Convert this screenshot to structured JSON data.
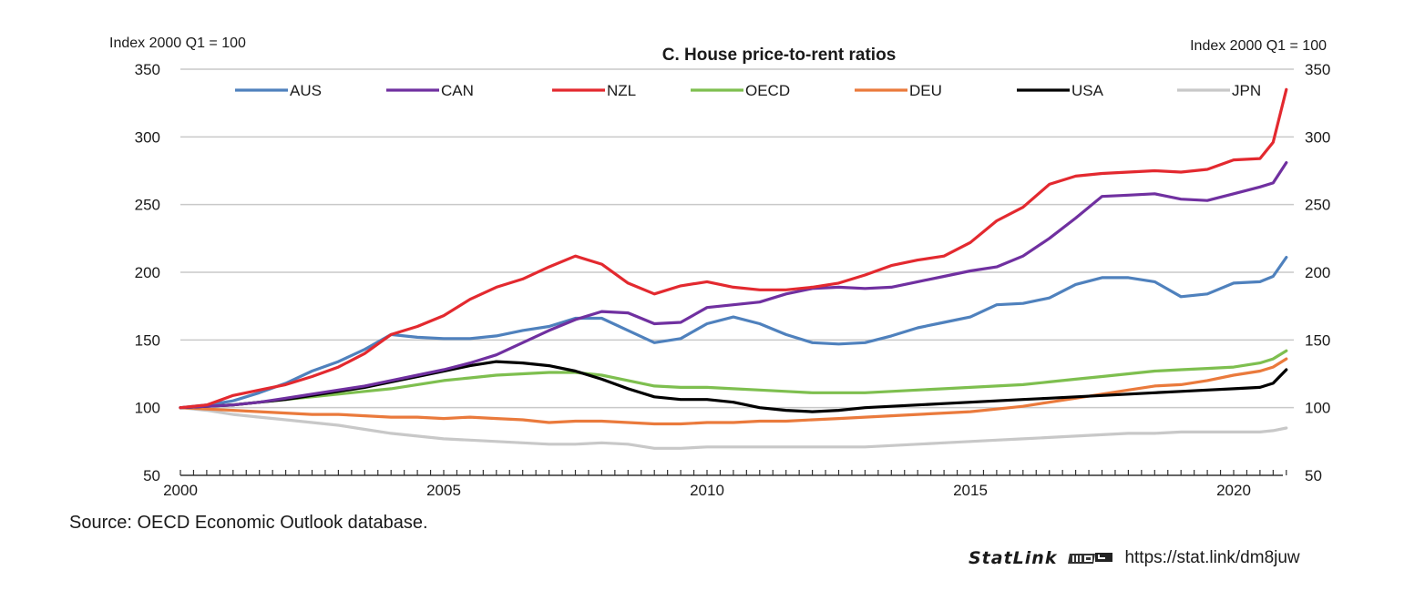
{
  "chart_data": {
    "type": "line",
    "title": "C. House price-to-rent ratios",
    "ylabel_left": "Index 2000 Q1 = 100",
    "ylabel_right": "Index 2000 Q1 = 100",
    "xlabel": "",
    "ylim": [
      50,
      350
    ],
    "yticks": [
      50,
      100,
      150,
      200,
      250,
      300,
      350
    ],
    "xlim": [
      2000,
      2021
    ],
    "xticks": [
      2000,
      2005,
      2010,
      2015,
      2020
    ],
    "grid": true,
    "legend_position": "top",
    "x": [
      2000.0,
      2000.5,
      2001.0,
      2001.5,
      2002.0,
      2002.5,
      2003.0,
      2003.5,
      2004.0,
      2004.5,
      2005.0,
      2005.5,
      2006.0,
      2006.5,
      2007.0,
      2007.5,
      2008.0,
      2008.5,
      2009.0,
      2009.5,
      2010.0,
      2010.5,
      2011.0,
      2011.5,
      2012.0,
      2012.5,
      2013.0,
      2013.5,
      2014.0,
      2014.5,
      2015.0,
      2015.5,
      2016.0,
      2016.5,
      2017.0,
      2017.5,
      2018.0,
      2018.5,
      2019.0,
      2019.5,
      2020.0,
      2020.5,
      2020.75,
      2021.0
    ],
    "series": [
      {
        "name": "AUS",
        "color": "#4f81bd",
        "values": [
          100,
          102,
          105,
          111,
          118,
          127,
          134,
          143,
          154,
          152,
          151,
          151,
          153,
          157,
          160,
          166,
          166,
          157,
          148,
          151,
          162,
          167,
          162,
          154,
          148,
          147,
          148,
          153,
          159,
          163,
          167,
          176,
          177,
          181,
          191,
          196,
          196,
          193,
          182,
          184,
          192,
          193,
          197,
          211
        ]
      },
      {
        "name": "CAN",
        "color": "#7030a0",
        "values": [
          100,
          101,
          102,
          104,
          107,
          110,
          113,
          116,
          120,
          124,
          128,
          133,
          139,
          148,
          157,
          165,
          171,
          170,
          162,
          163,
          174,
          176,
          178,
          184,
          188,
          189,
          188,
          189,
          193,
          197,
          201,
          204,
          212,
          225,
          240,
          256,
          257,
          258,
          254,
          253,
          258,
          263,
          266,
          281
        ]
      },
      {
        "name": "NZL",
        "color": "#e3292f",
        "values": [
          100,
          102,
          109,
          113,
          117,
          123,
          130,
          140,
          154,
          160,
          168,
          180,
          189,
          195,
          204,
          212,
          206,
          192,
          184,
          190,
          193,
          189,
          187,
          187,
          189,
          192,
          198,
          205,
          209,
          212,
          222,
          238,
          248,
          265,
          271,
          273,
          274,
          275,
          274,
          276,
          283,
          284,
          296,
          335
        ]
      },
      {
        "name": "OECD",
        "color": "#7ebf4f",
        "values": [
          100,
          101,
          102,
          104,
          106,
          108,
          110,
          112,
          114,
          117,
          120,
          122,
          124,
          125,
          126,
          126,
          124,
          120,
          116,
          115,
          115,
          114,
          113,
          112,
          111,
          111,
          111,
          112,
          113,
          114,
          115,
          116,
          117,
          119,
          121,
          123,
          125,
          127,
          128,
          129,
          130,
          133,
          136,
          142
        ]
      },
      {
        "name": "DEU",
        "color": "#ea7a3c",
        "values": [
          100,
          99,
          98,
          97,
          96,
          95,
          95,
          94,
          93,
          93,
          92,
          93,
          92,
          91,
          89,
          90,
          90,
          89,
          88,
          88,
          89,
          89,
          90,
          90,
          91,
          92,
          93,
          94,
          95,
          96,
          97,
          99,
          101,
          104,
          107,
          110,
          113,
          116,
          117,
          120,
          124,
          127,
          130,
          136
        ]
      },
      {
        "name": "USA",
        "color": "#000000",
        "values": [
          100,
          101,
          102,
          104,
          106,
          109,
          112,
          115,
          119,
          123,
          127,
          131,
          134,
          133,
          131,
          127,
          121,
          114,
          108,
          106,
          106,
          104,
          100,
          98,
          97,
          98,
          100,
          101,
          102,
          103,
          104,
          105,
          106,
          107,
          108,
          109,
          110,
          111,
          112,
          113,
          114,
          115,
          118,
          128
        ]
      },
      {
        "name": "JPN",
        "color": "#c8c8c8",
        "values": [
          100,
          98,
          95,
          93,
          91,
          89,
          87,
          84,
          81,
          79,
          77,
          76,
          75,
          74,
          73,
          73,
          74,
          73,
          70,
          70,
          71,
          71,
          71,
          71,
          71,
          71,
          71,
          72,
          73,
          74,
          75,
          76,
          77,
          78,
          79,
          80,
          81,
          81,
          82,
          82,
          82,
          82,
          83,
          85
        ]
      }
    ]
  },
  "footer": {
    "source": "Source: OECD Economic Outlook database.",
    "statlink_word": "StatLink",
    "statlink_url": "https://stat.link/dm8juw"
  }
}
